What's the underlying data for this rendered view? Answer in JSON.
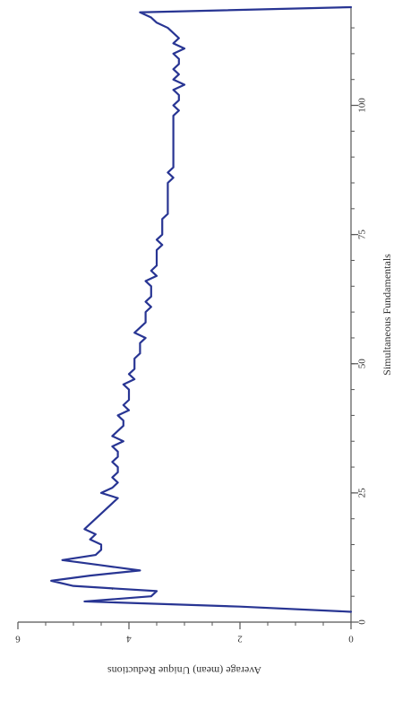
{
  "chart_data": {
    "type": "line",
    "orientation": "rotated-90-clockwise",
    "xlabel": "Simultaneous Fundamentals",
    "ylabel": "Average (mean) Unique Reductions",
    "x_ticks": [
      "0",
      "25",
      "50",
      "75",
      "100"
    ],
    "y_ticks": [
      "0",
      "2",
      "4",
      "6"
    ],
    "xlim": [
      0,
      119
    ],
    "ylim": [
      0,
      6
    ],
    "grid": false,
    "line_color": "#283593",
    "series": [
      {
        "x": [
          2,
          3,
          4,
          5,
          6,
          7,
          8,
          9,
          10,
          11,
          12,
          13,
          14,
          15,
          16,
          17,
          18,
          19,
          20,
          21,
          22,
          23,
          24,
          25,
          26,
          27,
          28,
          29,
          30,
          31,
          32,
          33,
          34,
          35,
          36,
          37,
          38,
          39,
          40,
          41,
          42,
          43,
          44,
          45,
          46,
          47,
          48,
          49,
          50,
          51,
          52,
          53,
          54,
          55,
          56,
          57,
          58,
          59,
          60,
          61,
          62,
          63,
          64,
          65,
          66,
          67,
          68,
          69,
          70,
          71,
          72,
          73,
          74,
          75,
          76,
          77,
          78,
          79,
          80,
          81,
          82,
          83,
          84,
          85,
          86,
          87,
          88,
          89,
          90,
          91,
          92,
          93,
          94,
          95,
          96,
          97,
          98,
          99,
          100,
          101,
          102,
          103,
          104,
          105,
          106,
          107,
          108,
          109,
          110,
          111,
          112,
          113,
          114,
          115,
          116,
          117,
          118,
          119
        ],
        "values": [
          0.0,
          2.0,
          4.8,
          3.6,
          3.5,
          5.0,
          5.4,
          4.7,
          3.8,
          4.5,
          5.2,
          4.6,
          4.5,
          4.5,
          4.7,
          4.6,
          4.8,
          4.7,
          4.6,
          4.5,
          4.4,
          4.3,
          4.2,
          4.5,
          4.3,
          4.2,
          4.3,
          4.2,
          4.2,
          4.3,
          4.2,
          4.2,
          4.3,
          4.1,
          4.3,
          4.2,
          4.1,
          4.1,
          4.2,
          4.0,
          4.1,
          4.0,
          4.0,
          4.0,
          4.1,
          3.9,
          4.0,
          3.9,
          3.9,
          3.9,
          3.8,
          3.8,
          3.8,
          3.7,
          3.9,
          3.8,
          3.7,
          3.7,
          3.7,
          3.6,
          3.7,
          3.6,
          3.6,
          3.6,
          3.7,
          3.5,
          3.6,
          3.5,
          3.5,
          3.5,
          3.5,
          3.4,
          3.5,
          3.4,
          3.4,
          3.4,
          3.4,
          3.3,
          3.3,
          3.3,
          3.3,
          3.3,
          3.3,
          3.3,
          3.2,
          3.3,
          3.2,
          3.2,
          3.2,
          3.2,
          3.2,
          3.2,
          3.2,
          3.2,
          3.2,
          3.2,
          3.2,
          3.1,
          3.2,
          3.1,
          3.1,
          3.2,
          3.0,
          3.2,
          3.1,
          3.2,
          3.1,
          3.1,
          3.2,
          3.0,
          3.2,
          3.1,
          3.2,
          3.3,
          3.5,
          3.6,
          3.8,
          0.0
        ]
      }
    ],
    "annotations": [
      {
        "text": ".",
        "x": 6.5,
        "y": 4.3
      }
    ]
  }
}
